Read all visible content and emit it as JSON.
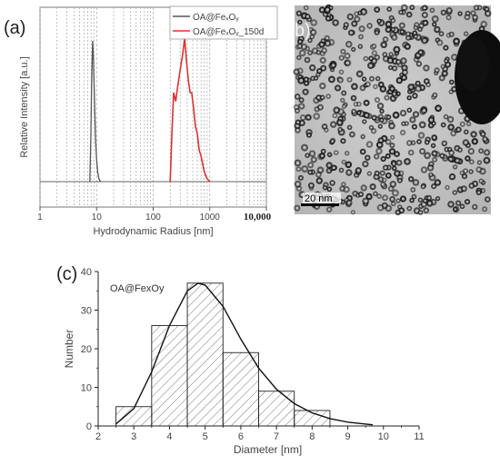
{
  "panels": {
    "a": "(a)",
    "b": "b)",
    "c": "(c)"
  },
  "tem": {
    "scale_bar": "20 nm"
  },
  "chart_data": [
    {
      "type": "line",
      "panel": "(a)",
      "xscale": "log",
      "xlim": [
        1,
        10000
      ],
      "xticks": [
        1,
        10,
        100,
        1000,
        10000
      ],
      "xtick_labels": [
        "1",
        "10",
        "100",
        "1000",
        "10,000"
      ],
      "xlabel": "Hydrodynamic Radius [nm]",
      "ylabel": "Relative Intensity [a.u.]",
      "ylim": [
        0,
        1.2
      ],
      "grid": "vertical dashed",
      "legend": "top-right",
      "series": [
        {
          "name": "OA@FeₓOᵧ",
          "color": "#555555",
          "x": [
            7.6,
            7.9,
            8.2,
            8.5,
            8.8,
            9.2,
            9.6,
            10.0,
            10.5,
            11.0,
            11.5,
            12.0
          ],
          "y": [
            0.0,
            0.3,
            0.72,
            0.98,
            0.86,
            0.55,
            0.3,
            0.15,
            0.06,
            0.02,
            0.005,
            0.0
          ]
        },
        {
          "name": "OA@FeₓOᵧ_150d",
          "color": "#e03030",
          "x": [
            200,
            215,
            230,
            250,
            270,
            300,
            330,
            360,
            390,
            420,
            450,
            480,
            520,
            560,
            600,
            650,
            700,
            750,
            800,
            850,
            900,
            1000
          ],
          "y": [
            0.0,
            0.35,
            0.62,
            0.56,
            0.66,
            0.78,
            0.88,
            1.0,
            0.83,
            0.7,
            0.62,
            0.62,
            0.5,
            0.38,
            0.34,
            0.22,
            0.18,
            0.12,
            0.07,
            0.04,
            0.02,
            0.0
          ]
        }
      ]
    },
    {
      "type": "bar",
      "panel": "(c)",
      "annotation": "OA@FexOy",
      "xlabel": "Diameter [nm]",
      "ylabel": "Number",
      "xlim": [
        2,
        11
      ],
      "ylim": [
        0,
        40
      ],
      "xticks": [
        2,
        3,
        4,
        5,
        6,
        7,
        8,
        9,
        10,
        11
      ],
      "yticks": [
        0,
        10,
        20,
        30,
        40
      ],
      "bins": [
        {
          "from": 2.5,
          "to": 3.5,
          "count": 5
        },
        {
          "from": 3.5,
          "to": 4.5,
          "count": 26
        },
        {
          "from": 4.5,
          "to": 5.5,
          "count": 37
        },
        {
          "from": 5.5,
          "to": 6.5,
          "count": 19
        },
        {
          "from": 6.5,
          "to": 7.5,
          "count": 9
        },
        {
          "from": 7.5,
          "to": 8.5,
          "count": 4
        }
      ],
      "fit": {
        "type": "lognormal",
        "x": [
          2.5,
          3.0,
          3.5,
          4.0,
          4.5,
          4.8,
          5.0,
          5.5,
          6.0,
          6.5,
          7.0,
          7.5,
          8.0,
          8.5,
          9.0,
          9.5,
          9.7
        ],
        "y": [
          0.5,
          4.5,
          14,
          26,
          35,
          37,
          36.5,
          31,
          22.5,
          15,
          9.5,
          5.8,
          3.4,
          1.9,
          1.0,
          0.5,
          0.3
        ]
      }
    }
  ]
}
